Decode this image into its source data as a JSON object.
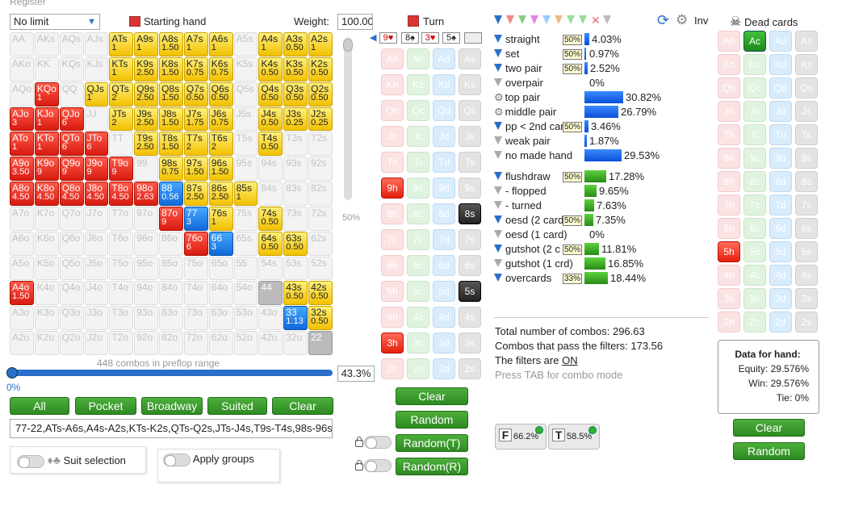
{
  "app": {
    "menu_title": "Register"
  },
  "range_panel": {
    "game_type": "No limit",
    "starting_hand_label": "Starting hand",
    "weight_label": "Weight:",
    "weight_value": "100.00",
    "vertical_slider_pct": "50%",
    "combos_note": "448 combos in preflop range",
    "range_pct_left": "0%",
    "range_pct_value": "43.3%",
    "buttons": [
      "All",
      "Pocket",
      "Broadway",
      "Suited",
      "Clear"
    ],
    "range_text": "77-22,ATs-A6s,A4s-A2s,KTs-K2s,QTs-Q2s,JTs-J4s,T9s-T4s,98s-96s,8",
    "suit_selection_label": "Suit selection",
    "apply_groups_label": "Apply groups",
    "grid": [
      [
        [
          "AA",
          ""
        ],
        [
          "AKs",
          ""
        ],
        [
          "AQs",
          ""
        ],
        [
          "AJs",
          ""
        ],
        [
          "ATs",
          "1",
          "y"
        ],
        [
          "A9s",
          "1",
          "y"
        ],
        [
          "A8s",
          "1.50",
          "y"
        ],
        [
          "A7s",
          "1",
          "y"
        ],
        [
          "A6s",
          "1",
          "y"
        ],
        [
          "A5s",
          ""
        ],
        [
          "A4s",
          "1",
          "y"
        ],
        [
          "A3s",
          "0.50",
          "y"
        ],
        [
          "A2s",
          "1",
          "y"
        ]
      ],
      [
        [
          "AKo",
          ""
        ],
        [
          "KK",
          ""
        ],
        [
          "KQs",
          ""
        ],
        [
          "KJs",
          ""
        ],
        [
          "KTs",
          "1",
          "y"
        ],
        [
          "K9s",
          "2.50",
          "y"
        ],
        [
          "K8s",
          "1.50",
          "y"
        ],
        [
          "K7s",
          "0.75",
          "y"
        ],
        [
          "K6s",
          "0.75",
          "y"
        ],
        [
          "K5s",
          ""
        ],
        [
          "K4s",
          "0.50",
          "y"
        ],
        [
          "K3s",
          "0.50",
          "y"
        ],
        [
          "K2s",
          "0.50",
          "y"
        ]
      ],
      [
        [
          "AQo",
          ""
        ],
        [
          "KQo",
          "1",
          "r"
        ],
        [
          "QQ",
          ""
        ],
        [
          "QJs",
          "1",
          "y"
        ],
        [
          "QTs",
          "2",
          "y"
        ],
        [
          "Q9s",
          "2.50",
          "y"
        ],
        [
          "Q8s",
          "1.50",
          "y"
        ],
        [
          "Q7s",
          "0.50",
          "y"
        ],
        [
          "Q6s",
          "0.50",
          "y"
        ],
        [
          "Q5s",
          ""
        ],
        [
          "Q4s",
          "0.50",
          "y"
        ],
        [
          "Q3s",
          "0.50",
          "y"
        ],
        [
          "Q2s",
          "0.50",
          "y"
        ]
      ],
      [
        [
          "AJo",
          "3",
          "r"
        ],
        [
          "KJo",
          "1",
          "r"
        ],
        [
          "QJo",
          "6",
          "r"
        ],
        [
          "JJ",
          ""
        ],
        [
          "JTs",
          "2",
          "y"
        ],
        [
          "J9s",
          "2.50",
          "y"
        ],
        [
          "J8s",
          "1.50",
          "y"
        ],
        [
          "J7s",
          "1.75",
          "y"
        ],
        [
          "J6s",
          "0.75",
          "y"
        ],
        [
          "J5s",
          ""
        ],
        [
          "J4s",
          "0.50",
          "y"
        ],
        [
          "J3s",
          "0.25",
          "y"
        ],
        [
          "J2s",
          "0.25",
          "y"
        ]
      ],
      [
        [
          "ATo",
          "1",
          "r"
        ],
        [
          "KTo",
          "1",
          "r"
        ],
        [
          "QTo",
          "6",
          "r"
        ],
        [
          "JTo",
          "6",
          "r"
        ],
        [
          "TT",
          ""
        ],
        [
          "T9s",
          "2.50",
          "y"
        ],
        [
          "T8s",
          "1.50",
          "y"
        ],
        [
          "T7s",
          "2",
          "y"
        ],
        [
          "T6s",
          "2",
          "y"
        ],
        [
          "T5s",
          ""
        ],
        [
          "T4s",
          "0.50",
          "y"
        ],
        [
          "T3s",
          ""
        ],
        [
          "T2s",
          ""
        ]
      ],
      [
        [
          "A9o",
          "3.50",
          "r"
        ],
        [
          "K9o",
          "9",
          "r"
        ],
        [
          "Q9o",
          "9",
          "r"
        ],
        [
          "J9o",
          "9",
          "r"
        ],
        [
          "T9o",
          "9",
          "r"
        ],
        [
          "99",
          ""
        ],
        [
          "98s",
          "0.75",
          "y"
        ],
        [
          "97s",
          "1.50",
          "y"
        ],
        [
          "96s",
          "1.50",
          "y"
        ],
        [
          "95s",
          ""
        ],
        [
          "94s",
          ""
        ],
        [
          "93s",
          ""
        ],
        [
          "92s",
          ""
        ]
      ],
      [
        [
          "A8o",
          "4.50",
          "r"
        ],
        [
          "K8o",
          "4.50",
          "r"
        ],
        [
          "Q8o",
          "4.50",
          "r"
        ],
        [
          "J8o",
          "4.50",
          "r"
        ],
        [
          "T8o",
          "4.50",
          "r"
        ],
        [
          "98o",
          "2.63",
          "r"
        ],
        [
          "88",
          "0.56",
          "b"
        ],
        [
          "87s",
          "2.50",
          "y"
        ],
        [
          "86s",
          "2.50",
          "y"
        ],
        [
          "85s",
          "1",
          "y"
        ],
        [
          "84s",
          ""
        ],
        [
          "83s",
          ""
        ],
        [
          "82s",
          ""
        ]
      ],
      [
        [
          "A7o",
          ""
        ],
        [
          "K7o",
          ""
        ],
        [
          "Q7o",
          ""
        ],
        [
          "J7o",
          ""
        ],
        [
          "T7o",
          ""
        ],
        [
          "97o",
          ""
        ],
        [
          "87o",
          "9",
          "r"
        ],
        [
          "77",
          "3",
          "b"
        ],
        [
          "76s",
          "1",
          "y"
        ],
        [
          "75s",
          ""
        ],
        [
          "74s",
          "0.50",
          "y"
        ],
        [
          "73s",
          ""
        ],
        [
          "72s",
          ""
        ]
      ],
      [
        [
          "A6o",
          ""
        ],
        [
          "K6o",
          ""
        ],
        [
          "Q6o",
          ""
        ],
        [
          "J6o",
          ""
        ],
        [
          "T6o",
          ""
        ],
        [
          "96o",
          ""
        ],
        [
          "86o",
          ""
        ],
        [
          "76o",
          "6",
          "r"
        ],
        [
          "66",
          "3",
          "b"
        ],
        [
          "65s",
          ""
        ],
        [
          "64s",
          "0.50",
          "y"
        ],
        [
          "63s",
          "0.50",
          "y"
        ],
        [
          "62s",
          ""
        ]
      ],
      [
        [
          "A5o",
          ""
        ],
        [
          "K5o",
          ""
        ],
        [
          "Q5o",
          ""
        ],
        [
          "J5o",
          ""
        ],
        [
          "T5o",
          ""
        ],
        [
          "95o",
          ""
        ],
        [
          "85o",
          ""
        ],
        [
          "75o",
          ""
        ],
        [
          "65o",
          ""
        ],
        [
          "55",
          ""
        ],
        [
          "54s",
          ""
        ],
        [
          "53s",
          ""
        ],
        [
          "52s",
          ""
        ]
      ],
      [
        [
          "A4o",
          "1.50",
          "r"
        ],
        [
          "K4o",
          ""
        ],
        [
          "Q4o",
          ""
        ],
        [
          "J4o",
          ""
        ],
        [
          "T4o",
          ""
        ],
        [
          "94o",
          ""
        ],
        [
          "84o",
          ""
        ],
        [
          "74o",
          ""
        ],
        [
          "64o",
          ""
        ],
        [
          "54o",
          ""
        ],
        [
          "44",
          "",
          "g"
        ],
        [
          "43s",
          "0.50",
          "y"
        ],
        [
          "42s",
          "0.50",
          "y"
        ]
      ],
      [
        [
          "A3o",
          ""
        ],
        [
          "K3o",
          ""
        ],
        [
          "Q3o",
          ""
        ],
        [
          "J3o",
          ""
        ],
        [
          "T3o",
          ""
        ],
        [
          "93o",
          ""
        ],
        [
          "83o",
          ""
        ],
        [
          "73o",
          ""
        ],
        [
          "63o",
          ""
        ],
        [
          "53o",
          ""
        ],
        [
          "43o",
          ""
        ],
        [
          "33",
          "1.13",
          "b"
        ],
        [
          "32s",
          "0.50",
          "y"
        ]
      ],
      [
        [
          "A2o",
          ""
        ],
        [
          "K2o",
          ""
        ],
        [
          "Q2o",
          ""
        ],
        [
          "J2o",
          ""
        ],
        [
          "T2o",
          ""
        ],
        [
          "92o",
          ""
        ],
        [
          "82o",
          ""
        ],
        [
          "72o",
          ""
        ],
        [
          "62o",
          ""
        ],
        [
          "52o",
          ""
        ],
        [
          "42o",
          ""
        ],
        [
          "32o",
          ""
        ],
        [
          "22",
          "",
          "g"
        ]
      ]
    ]
  },
  "board": {
    "turn_label": "Turn",
    "cards": [
      "9♥",
      "8♠",
      "3♥",
      "5♠"
    ],
    "ranks": [
      "A",
      "K",
      "Q",
      "J",
      "T",
      "9",
      "8",
      "7",
      "6",
      "5",
      "4",
      "3",
      "2"
    ],
    "selected": {
      "9h": "hf",
      "8s": "sf",
      "5s": "sf",
      "3h": "hf"
    },
    "buttons": [
      "Clear",
      "Random",
      "Random(T)",
      "Random(R)"
    ]
  },
  "filters": {
    "items": [
      {
        "label": "straight",
        "tag": "50%",
        "value": "4.03%",
        "kind": "blue",
        "pct": 0.0403,
        "fun": "b"
      },
      {
        "label": "set",
        "tag": "50%",
        "value": "0.97%",
        "kind": "blue",
        "pct": 0.0097,
        "fun": "b"
      },
      {
        "label": "two pair",
        "tag": "50%",
        "value": "2.52%",
        "kind": "blue",
        "pct": 0.0252,
        "fun": "b"
      },
      {
        "label": "overpair",
        "tag": "",
        "value": "0%",
        "kind": "blue",
        "pct": 0,
        "fun": "g"
      },
      {
        "label": "top pair",
        "tag": "",
        "value": "30.82%",
        "kind": "blue",
        "pct": 0.3082,
        "fun": "gear"
      },
      {
        "label": "middle pair",
        "tag": "",
        "value": "26.79%",
        "kind": "blue",
        "pct": 0.2679,
        "fun": "gear"
      },
      {
        "label": "pp < 2nd car",
        "tag": "50%",
        "value": "3.46%",
        "kind": "blue",
        "pct": 0.0346,
        "fun": "b"
      },
      {
        "label": "weak pair",
        "tag": "",
        "value": "1.87%",
        "kind": "blue",
        "pct": 0.0187,
        "fun": "g"
      },
      {
        "label": "no made hand",
        "tag": "",
        "value": "29.53%",
        "kind": "blue",
        "pct": 0.2953,
        "fun": "g"
      },
      {
        "label": "flushdraw",
        "tag": "50%",
        "value": "17.28%",
        "kind": "green",
        "pct": 0.1728,
        "fun": "b"
      },
      {
        "label": "- flopped",
        "tag": "",
        "value": "9.65%",
        "kind": "green",
        "pct": 0.0965,
        "fun": "g"
      },
      {
        "label": "- turned",
        "tag": "",
        "value": "7.63%",
        "kind": "green",
        "pct": 0.0763,
        "fun": "g"
      },
      {
        "label": "oesd (2 card",
        "tag": "50%",
        "value": "7.35%",
        "kind": "green",
        "pct": 0.0735,
        "fun": "b"
      },
      {
        "label": "oesd (1 card)",
        "tag": "",
        "value": "0%",
        "kind": "green",
        "pct": 0,
        "fun": "g"
      },
      {
        "label": "gutshot (2 c",
        "tag": "50%",
        "value": "11.81%",
        "kind": "green",
        "pct": 0.1181,
        "fun": "b"
      },
      {
        "label": "gutshot (1 crd)",
        "tag": "",
        "value": "16.85%",
        "kind": "green",
        "pct": 0.1685,
        "fun": "g"
      },
      {
        "label": "overcards",
        "tag": "33%",
        "value": "18.44%",
        "kind": "green",
        "pct": 0.1844,
        "fun": "b"
      }
    ],
    "inv_label": "Inv",
    "total_combos": "Total number of combos: 296.63",
    "pass_combos": "Combos that pass the filters: 173.56",
    "filters_are": "The filters are",
    "filters_state": "ON",
    "tab_hint": "Press TAB for combo mode",
    "f_badge": "66.2%",
    "t_badge": "58.5%"
  },
  "dead": {
    "title": "Dead cards",
    "selected": {
      "Ac": "cf",
      "5h": "hf"
    },
    "data_title": "Data for hand:",
    "equity": "Equity: 29.576%",
    "win": "Win: 29.576%",
    "tie": "Tie: 0%",
    "buttons": [
      "Clear",
      "Random"
    ]
  }
}
